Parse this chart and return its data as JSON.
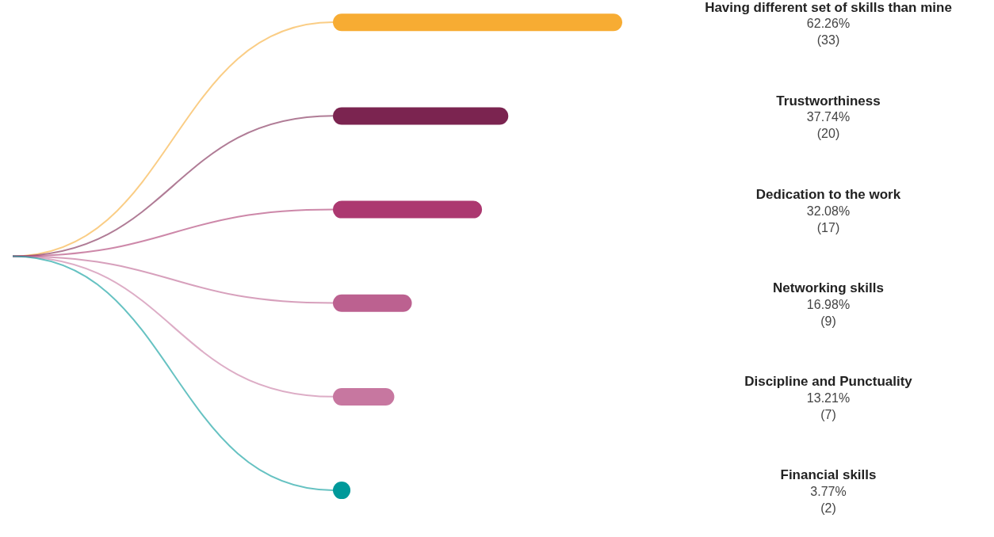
{
  "chart_data": {
    "type": "bar",
    "orientation": "horizontal",
    "categories": [
      "Having different set of skills than mine",
      "Trustworthiness",
      "Dedication to the work",
      "Networking skills",
      "Discipline and Punctuality",
      "Financial skills"
    ],
    "values": [
      62.26,
      37.74,
      32.08,
      16.98,
      13.21,
      3.77
    ],
    "value_labels": [
      "62.26%\n(33)",
      "37.74%\n(20)",
      "32.08%\n(17)",
      "16.98%\n(9)",
      "13.21%\n(7)",
      "3.77%\n(2)"
    ],
    "colors": [
      "#f7ac33",
      "#7b2450",
      "#ac3870",
      "#bc6190",
      "#c777a0",
      "#00999a"
    ],
    "legend": false,
    "grid": false
  }
}
